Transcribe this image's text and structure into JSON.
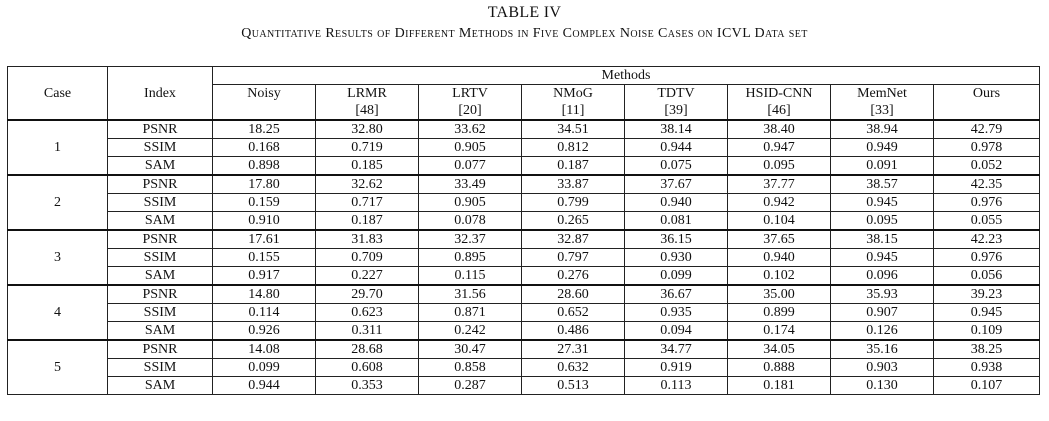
{
  "table_label": "TABLE IV",
  "caption": "Quantitative Results of Different Methods in Five Complex Noise Cases on ICVL Data set",
  "header": {
    "case": "Case",
    "index": "Index",
    "methods": "Methods",
    "method_names": [
      {
        "name": "Noisy",
        "ref": ""
      },
      {
        "name": "LRMR",
        "ref": "[48]"
      },
      {
        "name": "LRTV",
        "ref": "[20]"
      },
      {
        "name": "NMoG",
        "ref": "[11]"
      },
      {
        "name": "TDTV",
        "ref": "[39]"
      },
      {
        "name": "HSID-CNN",
        "ref": "[46]"
      },
      {
        "name": "MemNet",
        "ref": "[33]"
      },
      {
        "name": "Ours",
        "ref": ""
      }
    ]
  },
  "cases": [
    {
      "case": "1",
      "rows": [
        {
          "index": "PSNR",
          "values": [
            "18.25",
            "32.80",
            "33.62",
            "34.51",
            "38.14",
            "38.40",
            "38.94",
            "42.79"
          ],
          "bold": [
            7
          ]
        },
        {
          "index": "SSIM",
          "values": [
            "0.168",
            "0.719",
            "0.905",
            "0.812",
            "0.944",
            "0.947",
            "0.949",
            "0.978"
          ],
          "bold": [
            7
          ]
        },
        {
          "index": "SAM",
          "values": [
            "0.898",
            "0.185",
            "0.077",
            "0.187",
            "0.075",
            "0.095",
            "0.091",
            "0.052"
          ],
          "bold": [
            7
          ]
        }
      ]
    },
    {
      "case": "2",
      "rows": [
        {
          "index": "PSNR",
          "values": [
            "17.80",
            "32.62",
            "33.49",
            "33.87",
            "37.67",
            "37.77",
            "38.57",
            "42.35"
          ],
          "bold": [
            7
          ]
        },
        {
          "index": "SSIM",
          "values": [
            "0.159",
            "0.717",
            "0.905",
            "0.799",
            "0.940",
            "0.942",
            "0.945",
            "0.976"
          ],
          "bold": [
            7
          ]
        },
        {
          "index": "SAM",
          "values": [
            "0.910",
            "0.187",
            "0.078",
            "0.265",
            "0.081",
            "0.104",
            "0.095",
            "0.055"
          ],
          "bold": [
            7
          ]
        }
      ]
    },
    {
      "case": "3",
      "rows": [
        {
          "index": "PSNR",
          "values": [
            "17.61",
            "31.83",
            "32.37",
            "32.87",
            "36.15",
            "37.65",
            "38.15",
            "42.23"
          ],
          "bold": [
            7
          ]
        },
        {
          "index": "SSIM",
          "values": [
            "0.155",
            "0.709",
            "0.895",
            "0.797",
            "0.930",
            "0.940",
            "0.945",
            "0.976"
          ],
          "bold": [
            7
          ]
        },
        {
          "index": "SAM",
          "values": [
            "0.917",
            "0.227",
            "0.115",
            "0.276",
            "0.099",
            "0.102",
            "0.096",
            "0.056"
          ],
          "bold": [
            7
          ]
        }
      ]
    },
    {
      "case": "4",
      "rows": [
        {
          "index": "PSNR",
          "values": [
            "14.80",
            "29.70",
            "31.56",
            "28.60",
            "36.67",
            "35.00",
            "35.93",
            "39.23"
          ],
          "bold": [
            7
          ]
        },
        {
          "index": "SSIM",
          "values": [
            "0.114",
            "0.623",
            "0.871",
            "0.652",
            "0.935",
            "0.899",
            "0.907",
            "0.945"
          ],
          "bold": [
            7
          ]
        },
        {
          "index": "SAM",
          "values": [
            "0.926",
            "0.311",
            "0.242",
            "0.486",
            "0.094",
            "0.174",
            "0.126",
            "0.109"
          ],
          "bold": [
            4
          ]
        }
      ]
    },
    {
      "case": "5",
      "rows": [
        {
          "index": "PSNR",
          "values": [
            "14.08",
            "28.68",
            "30.47",
            "27.31",
            "34.77",
            "34.05",
            "35.16",
            "38.25"
          ],
          "bold": [
            7
          ]
        },
        {
          "index": "SSIM",
          "values": [
            "0.099",
            "0.608",
            "0.858",
            "0.632",
            "0.919",
            "0.888",
            "0.903",
            "0.938"
          ],
          "bold": [
            7
          ]
        },
        {
          "index": "SAM",
          "values": [
            "0.944",
            "0.353",
            "0.287",
            "0.513",
            "0.113",
            "0.181",
            "0.130",
            "0.107"
          ],
          "bold": [
            7
          ]
        }
      ]
    }
  ]
}
